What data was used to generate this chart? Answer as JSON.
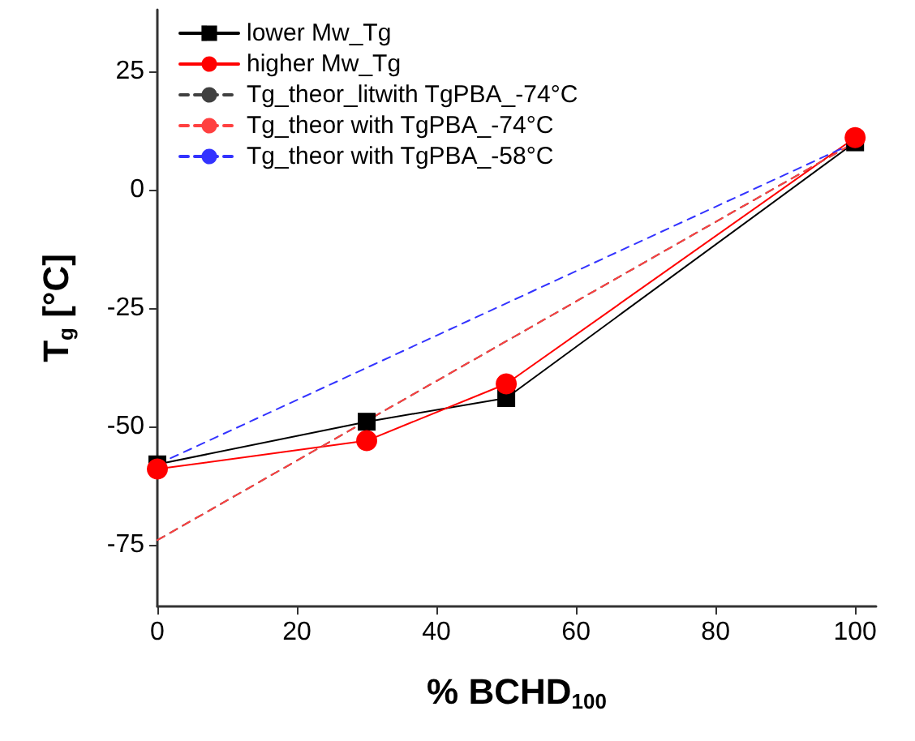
{
  "chart_data": {
    "type": "line",
    "xlabel": "% BCHD$_{100}$",
    "ylabel": "T$_{g}$ [°C]",
    "xlim": [
      0,
      103
    ],
    "xticks": [
      0,
      20,
      40,
      60,
      80,
      100
    ],
    "ylim": [
      -88,
      38
    ],
    "yticks": [
      -75,
      -50,
      -25,
      0,
      25
    ],
    "grid": false,
    "legend": "top left",
    "series": [
      {
        "name": "lower Mw_Tg",
        "color": "#000000",
        "marker": "square",
        "line_style": "solid",
        "x": [
          0,
          30,
          50,
          100
        ],
        "values": [
          -58,
          -49,
          -44,
          10
        ]
      },
      {
        "name": "higher Mw_Tg",
        "color": "#ff0000",
        "marker": "circle",
        "line_style": "solid",
        "x": [
          0,
          30,
          50,
          100
        ],
        "values": [
          -59,
          -53,
          -41,
          11
        ]
      },
      {
        "name": "Tg_theor_litwith TgPBA_-74°C",
        "color": "#404040",
        "marker": "none",
        "line_style": "dashed",
        "x": [
          0,
          100
        ],
        "values": [
          -74,
          10
        ]
      },
      {
        "name": "Tg_theor with TgPBA_-74°C",
        "color": "#ff4040",
        "marker": "none",
        "line_style": "dashed",
        "x": [
          0,
          100
        ],
        "values": [
          -74,
          10
        ]
      },
      {
        "name": "Tg_theor with TgPBA_-58°C",
        "color": "#3333ff",
        "marker": "none",
        "line_style": "dashed",
        "x": [
          0,
          100
        ],
        "values": [
          -58,
          10
        ]
      }
    ]
  }
}
